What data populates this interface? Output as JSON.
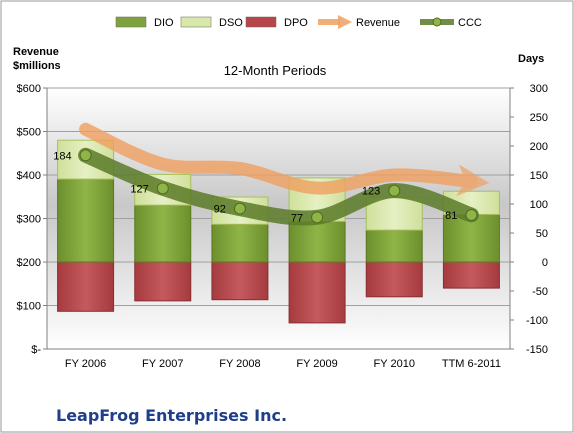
{
  "chart_data": {
    "type": "bar",
    "title": "12-Month Periods",
    "footer": "LeapFrog Enterprises Inc.",
    "left_axis_label": [
      "Revenue",
      "$millions"
    ],
    "right_axis_label": "Days",
    "categories": [
      "FY 2006",
      "FY 2007",
      "FY 2008",
      "FY 2009",
      "FY 2010",
      "TTM 6-2011"
    ],
    "left_ticks": [
      "$-",
      "$100",
      "$200",
      "$300",
      "$400",
      "$500",
      "$600"
    ],
    "right_ticks": [
      "-150",
      "-100",
      "-50",
      "0",
      "50",
      "100",
      "150",
      "200",
      "250",
      "300"
    ],
    "left_ylim": [
      0,
      600
    ],
    "right_ylim": [
      -150,
      300
    ],
    "legend": [
      {
        "name": "DIO",
        "kind": "bar",
        "color": "#7fa33c"
      },
      {
        "name": "DSO",
        "kind": "bar",
        "color": "#d8e8a8"
      },
      {
        "name": "DPO",
        "kind": "bar",
        "color": "#b8454a"
      },
      {
        "name": "Revenue",
        "kind": "arrow",
        "color": "#f0a060"
      },
      {
        "name": "CCC",
        "kind": "line",
        "color": "#5a7a28"
      }
    ],
    "series": [
      {
        "name": "DIO",
        "axis": "right",
        "values": [
          143,
          98,
          65,
          70,
          55,
          82
        ]
      },
      {
        "name": "DSO",
        "axis": "right",
        "values": [
          67,
          53,
          47,
          75,
          57,
          40
        ]
      },
      {
        "name": "DPO",
        "axis": "right",
        "values": [
          -85,
          -67,
          -65,
          -105,
          -60,
          -45
        ]
      },
      {
        "name": "Revenue",
        "axis": "left",
        "values": [
          505,
          425,
          415,
          370,
          400,
          385
        ]
      },
      {
        "name": "CCC",
        "axis": "right",
        "values": [
          184,
          127,
          92,
          77,
          123,
          81
        ]
      }
    ],
    "ccc_labels": [
      "184",
      "127",
      "92",
      "77",
      "123",
      "81"
    ],
    "colors": {
      "dio": "#7fa33c",
      "dso": "#d8e8a8",
      "dpo": "#b8454a",
      "revenue": "#f0a060",
      "ccc": "#5a7a28",
      "title": "#1f3f8a"
    },
    "grid": true,
    "legend_position": "top"
  }
}
